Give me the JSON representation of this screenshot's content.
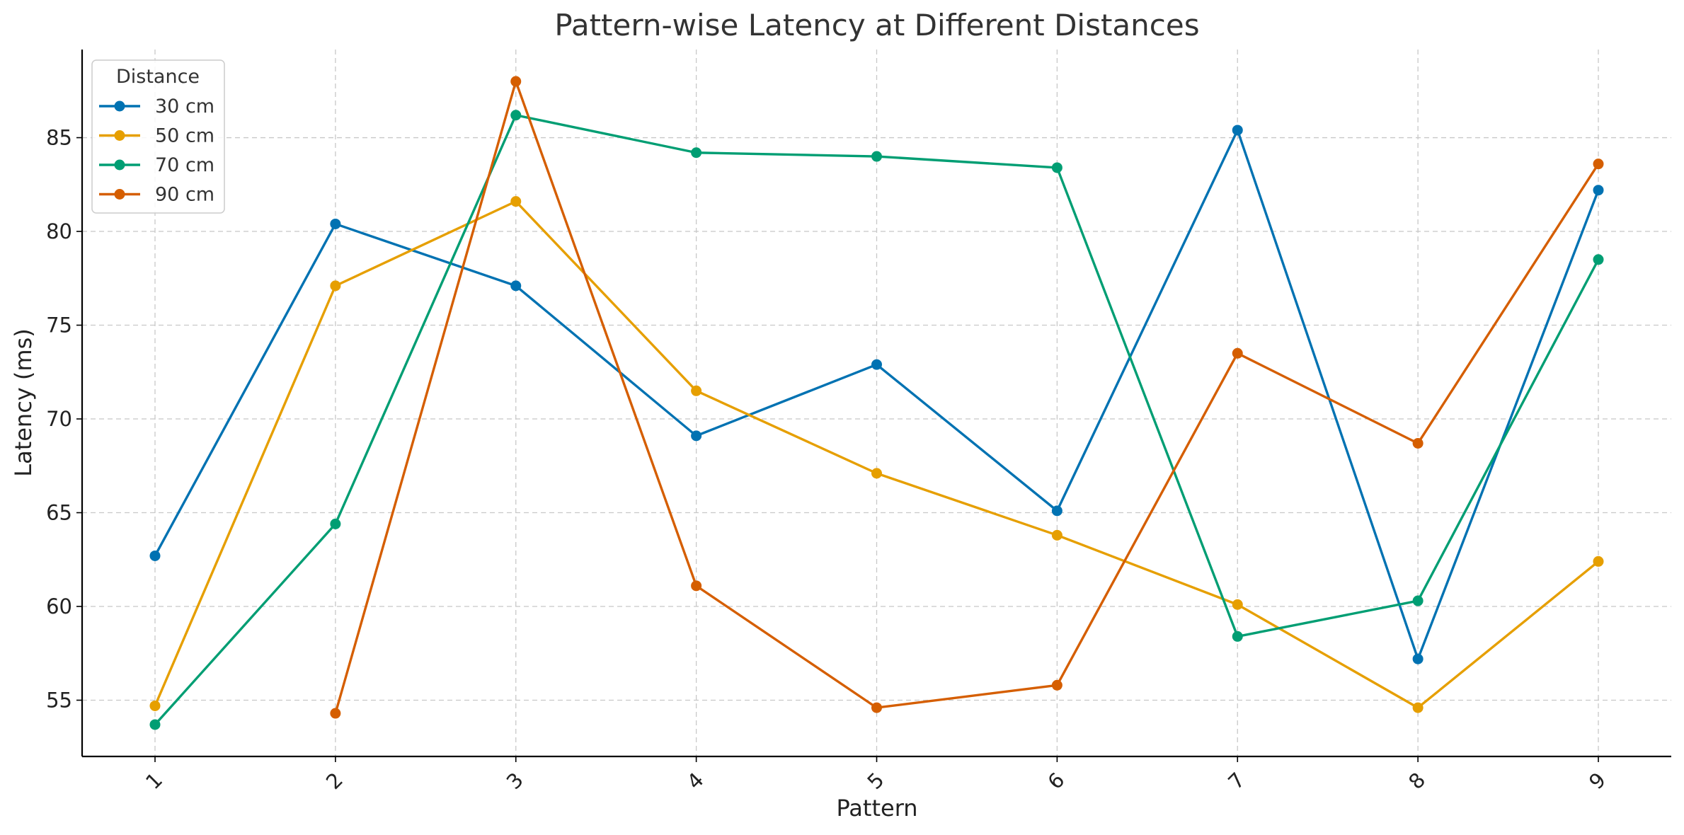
{
  "chart_data": {
    "type": "line",
    "title": "Pattern-wise Latency at Different Distances",
    "xlabel": "Pattern",
    "ylabel": "Latency (ms)",
    "categories": [
      "1",
      "2",
      "3",
      "4",
      "5",
      "6",
      "7",
      "8",
      "9"
    ],
    "y_ticks": [
      "55",
      "60",
      "65",
      "70",
      "75",
      "80",
      "85"
    ],
    "ylim": [
      52,
      89.7
    ],
    "grid": true,
    "legend": {
      "title": "Distance",
      "placement": "top-left"
    },
    "series": [
      {
        "name": "30 cm",
        "color": "#0072b2",
        "values": [
          62.7,
          80.4,
          77.1,
          69.1,
          72.9,
          65.1,
          85.4,
          57.2,
          82.2
        ]
      },
      {
        "name": "50 cm",
        "color": "#e69f00",
        "values": [
          54.7,
          77.1,
          81.6,
          71.5,
          67.1,
          63.8,
          60.1,
          54.6,
          62.4
        ]
      },
      {
        "name": "70 cm",
        "color": "#009e73",
        "values": [
          53.7,
          64.4,
          86.2,
          84.2,
          84.0,
          83.4,
          58.4,
          60.3,
          78.5
        ]
      },
      {
        "name": "90 cm",
        "color": "#d55e00",
        "values": [
          null,
          54.3,
          88.0,
          61.1,
          54.6,
          55.8,
          73.5,
          68.7,
          83.6
        ]
      }
    ]
  }
}
